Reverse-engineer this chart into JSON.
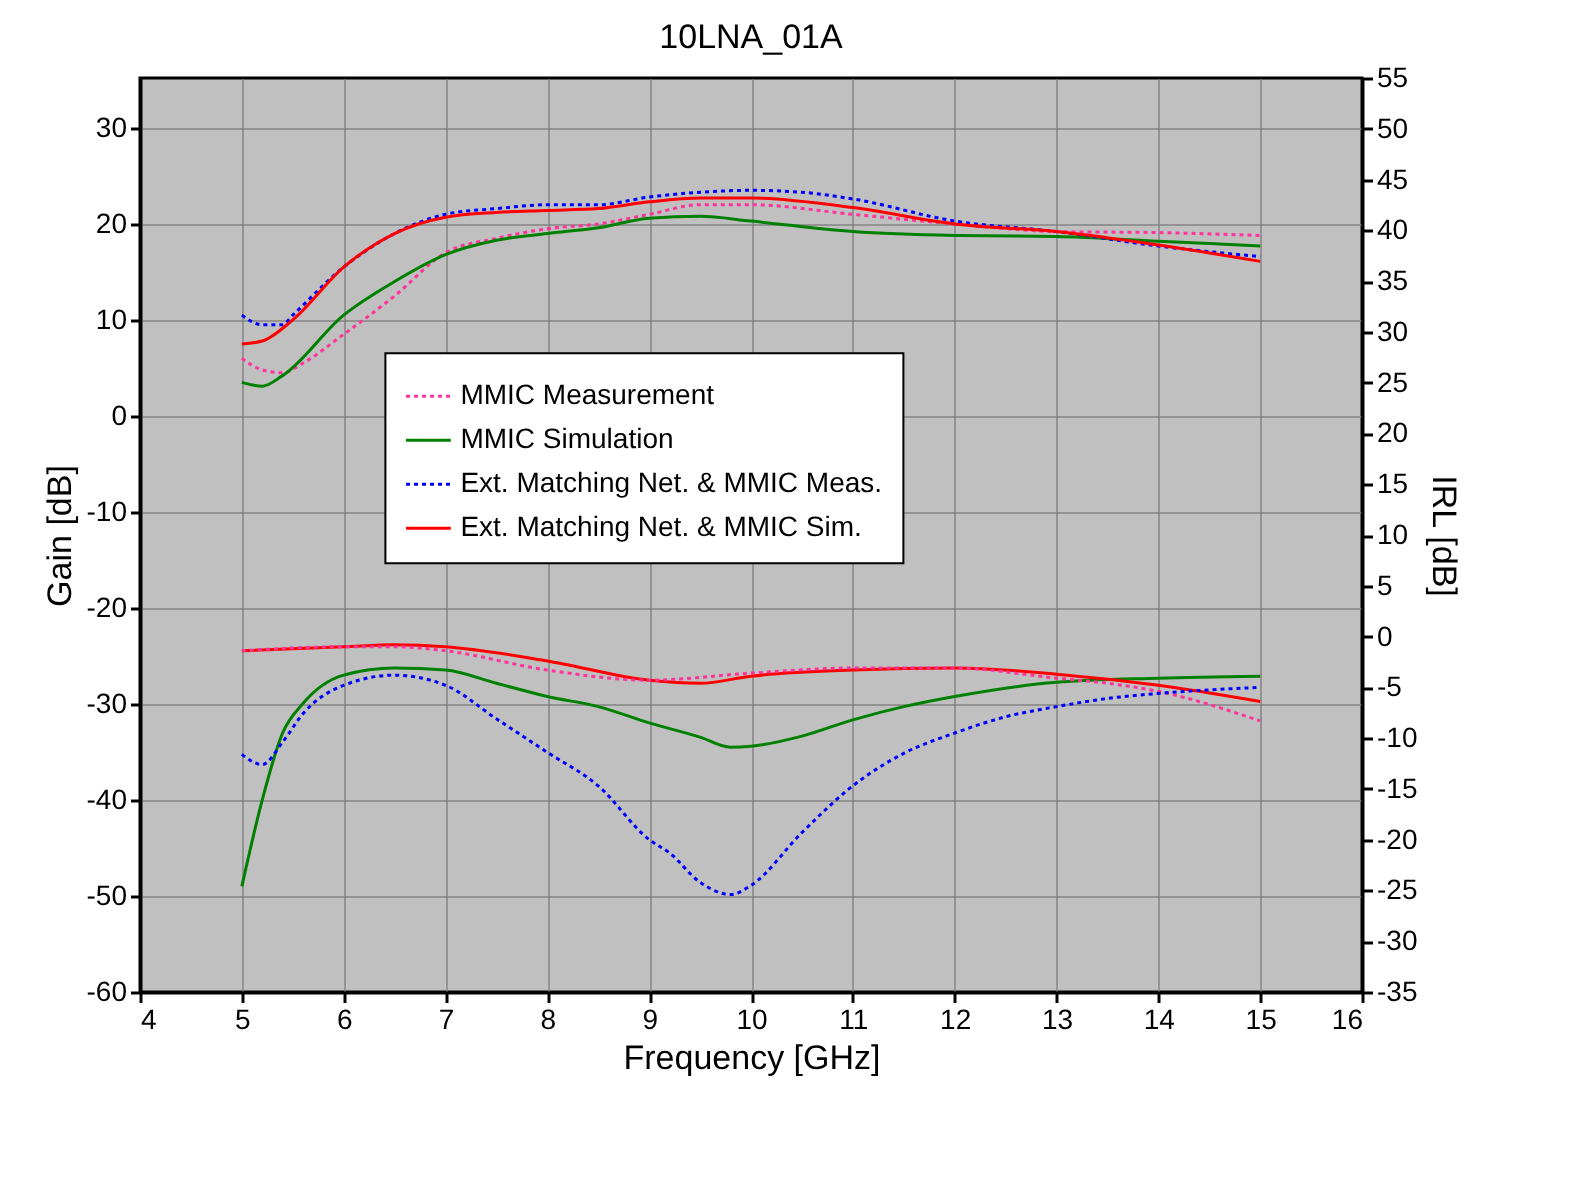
{
  "chart_data": {
    "type": "line",
    "title": "10LNA_01A",
    "xlabel": "Frequency [GHz]",
    "ylabel": "Gain [dB]",
    "y2label": "IRL [dB]",
    "xlim": [
      4,
      16
    ],
    "xticks": [
      4,
      5,
      6,
      7,
      8,
      9,
      10,
      11,
      12,
      13,
      14,
      15,
      16
    ],
    "ylim": [
      -60,
      35.2
    ],
    "yticks": [
      -60,
      -50,
      -40,
      -30,
      -20,
      -10,
      0,
      10,
      20,
      30
    ],
    "y2lim": [
      -35,
      55
    ],
    "y2ticks": [
      -35,
      -30,
      -25,
      -20,
      -15,
      -10,
      -5,
      0,
      5,
      10,
      15,
      20,
      25,
      30,
      35,
      40,
      45,
      50,
      55
    ],
    "grid": true,
    "legend": "center",
    "marker": "none",
    "series": [
      {
        "name": "MMIC Measurement",
        "color": "#ff3399",
        "line_style": "dotted",
        "x": [
          5,
          5.2,
          5.4,
          5.6,
          6,
          6.5,
          7,
          7.5,
          8,
          8.5,
          9,
          9.5,
          10,
          11,
          12,
          13,
          14,
          15
        ],
        "values": [
          6,
          4.8,
          4.5,
          5.5,
          8.5,
          12.5,
          17,
          18.5,
          19.5,
          20,
          21,
          22,
          22,
          21,
          20,
          19.2,
          19.1,
          18.8
        ]
      },
      {
        "name": "MMIC Simulation",
        "color": "#008000",
        "line_style": "solid",
        "x": [
          5,
          5.2,
          5.4,
          6,
          6.5,
          7,
          7.5,
          8,
          8.5,
          9,
          9.5,
          10,
          11,
          12,
          13,
          14,
          15
        ],
        "values": [
          3.5,
          3.1,
          4.2,
          10.5,
          14,
          16.8,
          18.3,
          19,
          19.6,
          20.6,
          20.8,
          20.3,
          19.2,
          18.8,
          18.7,
          18.2,
          17.7
        ]
      },
      {
        "name": "Ext. Matching Net. & MMIC Meas.",
        "color": "#0000ff",
        "line_style": "dotted",
        "x": [
          5,
          5.2,
          5.4,
          5.5,
          6,
          6.5,
          7,
          7.5,
          8,
          8.5,
          9,
          9.5,
          10,
          10.5,
          11,
          12,
          13,
          14,
          15
        ],
        "values": [
          10.5,
          9.5,
          9.5,
          10.5,
          15.5,
          19,
          21,
          21.6,
          22,
          22,
          22.8,
          23.3,
          23.5,
          23.3,
          22.6,
          20.3,
          19.2,
          17.7,
          16.6
        ]
      },
      {
        "name": "Ext. Matching Net. & MMIC Sim.",
        "color": "#ff0000",
        "line_style": "solid",
        "x": [
          5,
          5.2,
          5.5,
          6,
          6.5,
          7,
          7.5,
          8,
          8.5,
          9,
          9.5,
          10,
          11,
          12,
          13,
          14,
          15
        ],
        "values": [
          7.5,
          7.8,
          10,
          15.5,
          19,
          20.7,
          21.2,
          21.4,
          21.6,
          22.3,
          22.7,
          22.7,
          21.7,
          20,
          19.2,
          17.8,
          16.1
        ]
      },
      {
        "color": "#ff3399",
        "line_style": "dotted",
        "axis": "y2",
        "x": [
          5,
          6,
          6.5,
          7,
          8,
          9,
          10,
          11,
          12,
          13,
          13.5,
          14,
          15
        ],
        "values": [
          -1.4,
          -1,
          -1,
          -1.4,
          -3.3,
          -4.3,
          -3.6,
          -3.1,
          -3.1,
          -4.1,
          -4.6,
          -5.4,
          -8.3
        ]
      },
      {
        "color": "#008000",
        "line_style": "solid",
        "axis": "y2",
        "x": [
          5,
          5.2,
          5.4,
          5.6,
          6,
          6.5,
          7,
          7.5,
          8,
          8.5,
          9,
          9.5,
          9.8,
          10,
          10.5,
          11,
          11.5,
          12,
          13,
          14,
          15
        ],
        "values": [
          -24.6,
          -16.1,
          -9.5,
          -6.6,
          -3.8,
          -3.1,
          -3.3,
          -4.6,
          -5.9,
          -6.9,
          -8.5,
          -9.9,
          -10.9,
          -10.8,
          -9.8,
          -8.2,
          -6.9,
          -5.9,
          -4.5,
          -4.1,
          -3.9
        ]
      },
      {
        "color": "#0000ff",
        "line_style": "dotted",
        "axis": "y2",
        "x": [
          5,
          5.2,
          5.4,
          5.6,
          6,
          6.5,
          7,
          7.5,
          8,
          8.5,
          9,
          9.2,
          9.5,
          9.8,
          10,
          10.5,
          11,
          11.5,
          12,
          12.5,
          13,
          13.5,
          14,
          15
        ],
        "values": [
          -11.6,
          -12.6,
          -10.4,
          -7.6,
          -4.8,
          -3.8,
          -4.8,
          -8.1,
          -11.4,
          -14.7,
          -20,
          -21.3,
          -24.2,
          -25.4,
          -24.5,
          -19.3,
          -14.7,
          -11.5,
          -9.5,
          -7.9,
          -6.9,
          -6.1,
          -5.6,
          -5
        ]
      },
      {
        "color": "#ff0000",
        "line_style": "solid",
        "axis": "y2",
        "x": [
          5,
          6,
          6.5,
          7,
          8,
          9,
          9.5,
          10,
          11,
          12,
          13,
          14,
          15
        ],
        "values": [
          -1.4,
          -1,
          -0.8,
          -1,
          -2.4,
          -4.3,
          -4.6,
          -3.9,
          -3.3,
          -3.1,
          -3.7,
          -4.8,
          -6.4
        ]
      }
    ]
  }
}
